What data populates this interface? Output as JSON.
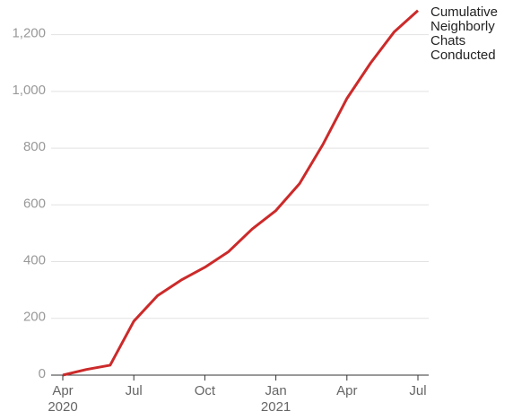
{
  "chart_data": {
    "type": "line",
    "x": [
      "2020-04",
      "2020-05",
      "2020-06",
      "2020-07",
      "2020-08",
      "2020-09",
      "2020-10",
      "2020-11",
      "2020-12",
      "2021-01",
      "2021-02",
      "2021-03",
      "2021-04",
      "2021-05",
      "2021-06",
      "2021-07"
    ],
    "series": [
      {
        "name": "Cumulative Neighborly Chats Conducted",
        "color": "#cc2a2a",
        "values": [
          0,
          20,
          35,
          190,
          280,
          335,
          380,
          435,
          515,
          580,
          675,
          815,
          975,
          1100,
          1210,
          1285
        ]
      }
    ],
    "xticks": [
      {
        "value": "2020-04",
        "label": "Apr 2020"
      },
      {
        "value": "2020-07",
        "label": "Jul"
      },
      {
        "value": "2020-10",
        "label": "Oct"
      },
      {
        "value": "2021-01",
        "label": "Jan 2021"
      },
      {
        "value": "2021-04",
        "label": "Apr"
      },
      {
        "value": "2021-07",
        "label": "Jul"
      }
    ],
    "ylim": [
      0,
      1300
    ],
    "yticks": [
      0,
      200,
      400,
      600,
      800,
      {
        "value": 1000,
        "label": "1,000"
      },
      {
        "value": 1200,
        "label": "1,200"
      }
    ],
    "grid": true
  }
}
